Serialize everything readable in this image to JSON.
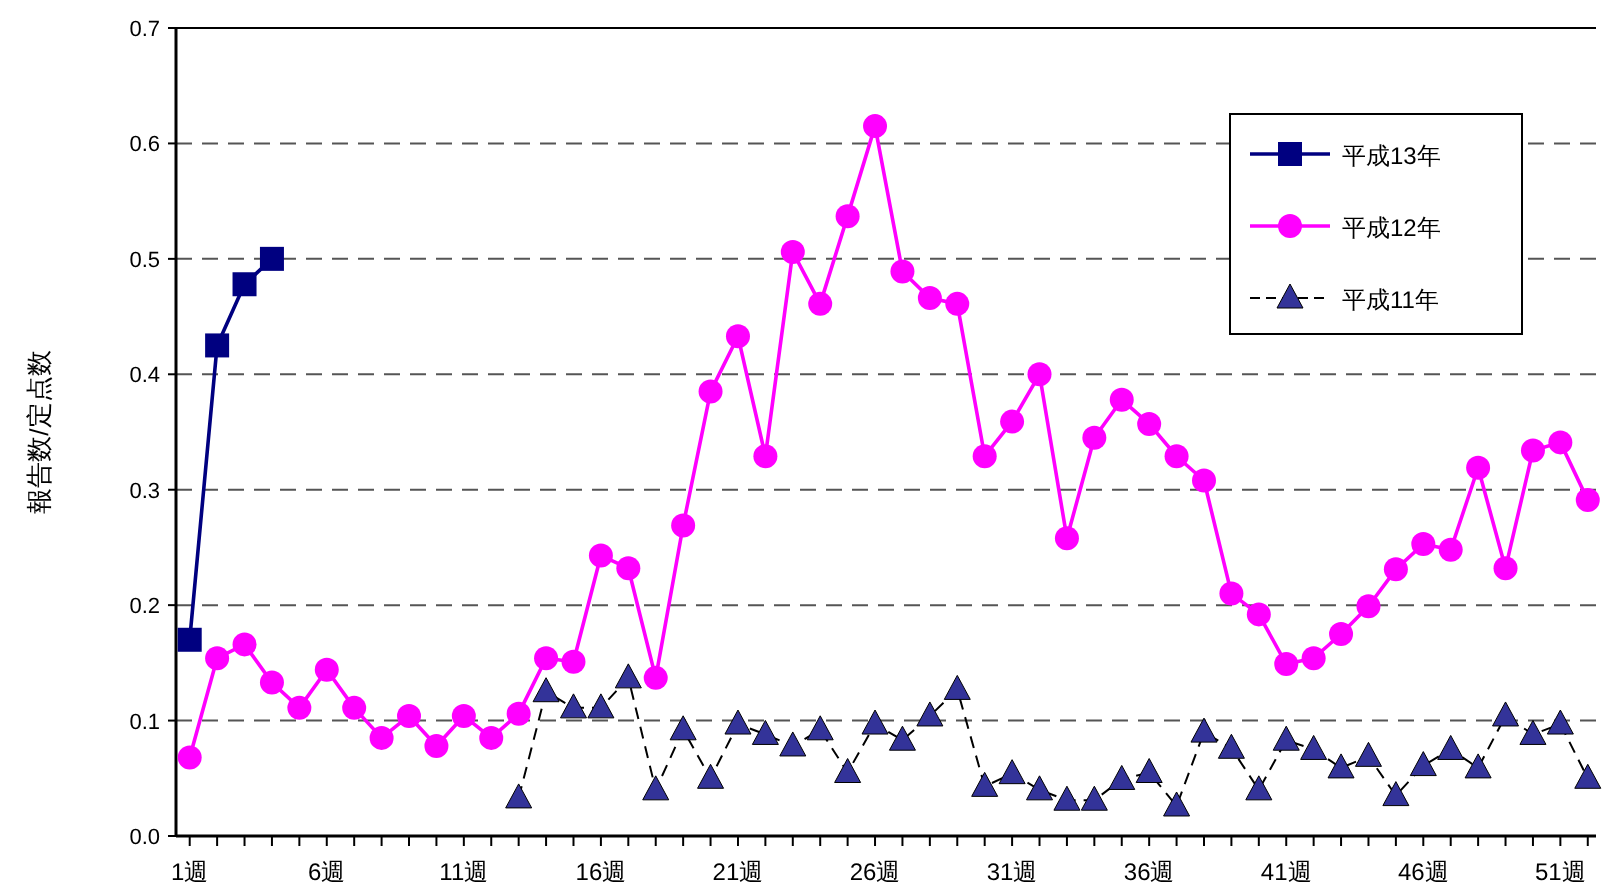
{
  "chart_data": {
    "type": "line",
    "ylabel": "報告数/定点数",
    "x": [
      1,
      2,
      3,
      4,
      5,
      6,
      7,
      8,
      9,
      10,
      11,
      12,
      13,
      14,
      15,
      16,
      17,
      18,
      19,
      20,
      21,
      22,
      23,
      24,
      25,
      26,
      27,
      28,
      29,
      30,
      31,
      32,
      33,
      34,
      35,
      36,
      37,
      38,
      39,
      40,
      41,
      42,
      43,
      44,
      45,
      46,
      47,
      48,
      49,
      50,
      51,
      52
    ],
    "xlim": [
      0.5,
      52.3
    ],
    "xticks": [
      {
        "value": 1,
        "label": "1週"
      },
      {
        "value": 2,
        "label": null
      },
      {
        "value": 3,
        "label": null
      },
      {
        "value": 4,
        "label": null
      },
      {
        "value": 5,
        "label": null
      },
      {
        "value": 6,
        "label": "6週"
      },
      {
        "value": 7,
        "label": null
      },
      {
        "value": 8,
        "label": null
      },
      {
        "value": 9,
        "label": null
      },
      {
        "value": 10,
        "label": null
      },
      {
        "value": 11,
        "label": "11週"
      },
      {
        "value": 12,
        "label": null
      },
      {
        "value": 13,
        "label": null
      },
      {
        "value": 14,
        "label": null
      },
      {
        "value": 15,
        "label": null
      },
      {
        "value": 16,
        "label": "16週"
      },
      {
        "value": 17,
        "label": null
      },
      {
        "value": 18,
        "label": null
      },
      {
        "value": 19,
        "label": null
      },
      {
        "value": 20,
        "label": null
      },
      {
        "value": 21,
        "label": "21週"
      },
      {
        "value": 22,
        "label": null
      },
      {
        "value": 23,
        "label": null
      },
      {
        "value": 24,
        "label": null
      },
      {
        "value": 25,
        "label": null
      },
      {
        "value": 26,
        "label": "26週"
      },
      {
        "value": 27,
        "label": null
      },
      {
        "value": 28,
        "label": null
      },
      {
        "value": 29,
        "label": null
      },
      {
        "value": 30,
        "label": null
      },
      {
        "value": 31,
        "label": "31週"
      },
      {
        "value": 32,
        "label": null
      },
      {
        "value": 33,
        "label": null
      },
      {
        "value": 34,
        "label": null
      },
      {
        "value": 35,
        "label": null
      },
      {
        "value": 36,
        "label": "36週"
      },
      {
        "value": 37,
        "label": null
      },
      {
        "value": 38,
        "label": null
      },
      {
        "value": 39,
        "label": null
      },
      {
        "value": 40,
        "label": null
      },
      {
        "value": 41,
        "label": "41週"
      },
      {
        "value": 42,
        "label": null
      },
      {
        "value": 43,
        "label": null
      },
      {
        "value": 44,
        "label": null
      },
      {
        "value": 45,
        "label": null
      },
      {
        "value": 46,
        "label": "46週"
      },
      {
        "value": 47,
        "label": null
      },
      {
        "value": 48,
        "label": null
      },
      {
        "value": 49,
        "label": null
      },
      {
        "value": 50,
        "label": null
      },
      {
        "value": 51,
        "label": "51週"
      },
      {
        "value": 52,
        "label": null
      }
    ],
    "ylim": [
      0,
      0.7
    ],
    "yticks": [
      {
        "value": 0,
        "label": "0.0"
      },
      {
        "value": 0.1,
        "label": "0.1"
      },
      {
        "value": 0.2,
        "label": "0.2"
      },
      {
        "value": 0.3,
        "label": "0.3"
      },
      {
        "value": 0.4,
        "label": "0.4"
      },
      {
        "value": 0.5,
        "label": "0.5"
      },
      {
        "value": 0.6,
        "label": "0.6"
      },
      {
        "value": 0.7,
        "label": "0.7"
      }
    ],
    "grid": "y",
    "legend": "top right",
    "series": [
      {
        "name": "平成13年",
        "color": "#000080",
        "marker": "square",
        "line_style": "solid",
        "values": [
          0.17,
          0.425,
          0.478,
          0.5,
          null,
          null,
          null,
          null,
          null,
          null,
          null,
          null,
          null,
          null,
          null,
          null,
          null,
          null,
          null,
          null,
          null,
          null,
          null,
          null,
          null,
          null,
          null,
          null,
          null,
          null,
          null,
          null,
          null,
          null,
          null,
          null,
          null,
          null,
          null,
          null,
          null,
          null,
          null,
          null,
          null,
          null,
          null,
          null,
          null,
          null,
          null,
          null
        ]
      },
      {
        "name": "平成12年",
        "color": "#ff00ff",
        "marker": "circle",
        "line_style": "solid",
        "values": [
          0.068,
          0.154,
          0.166,
          0.133,
          0.111,
          0.144,
          0.111,
          0.085,
          0.104,
          0.078,
          0.104,
          0.085,
          0.106,
          0.154,
          0.151,
          0.243,
          0.232,
          0.137,
          0.269,
          0.385,
          0.433,
          0.329,
          0.506,
          0.461,
          0.537,
          0.615,
          0.489,
          0.466,
          0.461,
          0.329,
          0.359,
          0.4,
          0.258,
          0.345,
          0.378,
          0.357,
          0.329,
          0.308,
          0.21,
          0.192,
          0.149,
          0.154,
          0.175,
          0.199,
          0.231,
          0.253,
          0.248,
          0.319,
          0.232,
          0.334,
          0.341,
          0.291
        ]
      },
      {
        "name": "平成11年",
        "color": "#333399",
        "marker": "triangle",
        "line_style": "dashed",
        "values": [
          null,
          null,
          null,
          null,
          null,
          null,
          null,
          null,
          null,
          null,
          null,
          null,
          0.033,
          0.125,
          0.111,
          0.111,
          0.137,
          0.04,
          0.092,
          0.05,
          0.097,
          0.088,
          0.078,
          0.092,
          0.055,
          0.097,
          0.083,
          0.104,
          0.127,
          0.043,
          0.054,
          0.04,
          0.031,
          0.031,
          0.049,
          0.055,
          0.026,
          0.09,
          0.076,
          0.04,
          0.083,
          0.075,
          0.059,
          0.069,
          0.035,
          0.061,
          0.075,
          0.059,
          0.104,
          0.088,
          0.097,
          0.05
        ]
      }
    ]
  }
}
